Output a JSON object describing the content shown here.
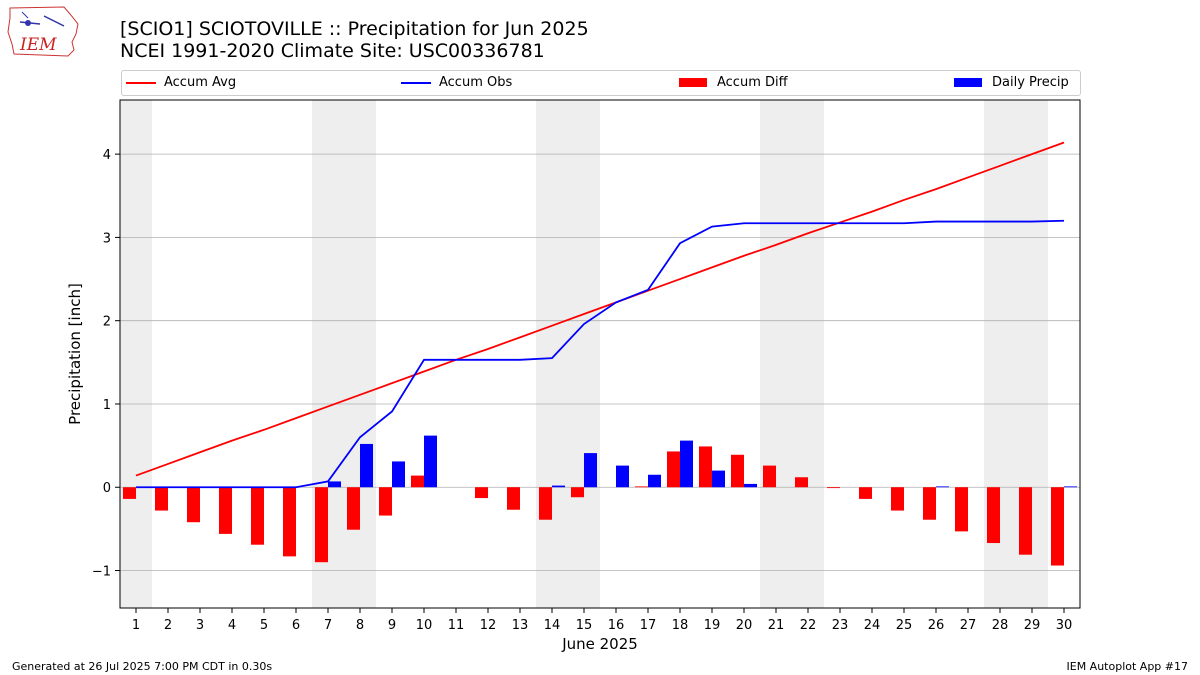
{
  "header": {
    "title_line1": "[SCIO1] SCIOTOVILLE :: Precipitation for Jun 2025",
    "title_line2": "NCEI 1991-2020 Climate Site: USC00336781"
  },
  "logo": {
    "text": "IEM"
  },
  "footer": {
    "left": "Generated at 26 Jul 2025 7:00 PM CDT in 0.30s",
    "right": "IEM Autoplot App #17"
  },
  "colors": {
    "accum_avg": "#ff0000",
    "accum_obs": "#0000ff",
    "accum_diff": "#ff0000",
    "daily_precip": "#0000ff",
    "weekend_shade": "#eeeeee",
    "grid": "#b0b0b0"
  },
  "chart_data": {
    "type": "bar",
    "xlabel": "June 2025",
    "ylabel": "Precipitation [inch]",
    "ylim": [
      -1.45,
      4.65
    ],
    "yticks": [
      -1,
      0,
      1,
      2,
      3,
      4
    ],
    "ytick_labels": [
      "−1",
      "0",
      "1",
      "2",
      "3",
      "4"
    ],
    "grid": "horizontal",
    "legend": "top",
    "categories": [
      "1",
      "2",
      "3",
      "4",
      "5",
      "6",
      "7",
      "8",
      "9",
      "10",
      "11",
      "12",
      "13",
      "14",
      "15",
      "16",
      "17",
      "18",
      "19",
      "20",
      "21",
      "22",
      "23",
      "24",
      "25",
      "26",
      "27",
      "28",
      "29",
      "30"
    ],
    "shaded_day_ranges": [
      [
        1,
        1
      ],
      [
        7,
        8
      ],
      [
        14,
        15
      ],
      [
        21,
        22
      ],
      [
        28,
        29
      ]
    ],
    "series": [
      {
        "name": "Accum Avg",
        "kind": "line",
        "values": [
          0.14,
          0.28,
          0.42,
          0.56,
          0.69,
          0.83,
          0.97,
          1.11,
          1.25,
          1.39,
          1.53,
          1.66,
          1.8,
          1.94,
          2.08,
          2.22,
          2.36,
          2.5,
          2.64,
          2.78,
          2.91,
          3.05,
          3.18,
          3.31,
          3.45,
          3.58,
          3.72,
          3.86,
          4.0,
          4.14
        ]
      },
      {
        "name": "Accum Obs",
        "kind": "line",
        "values": [
          0.0,
          0.0,
          0.0,
          0.0,
          0.0,
          0.0,
          0.07,
          0.6,
          0.91,
          1.53,
          1.53,
          1.53,
          1.53,
          1.55,
          1.96,
          2.22,
          2.37,
          2.93,
          3.13,
          3.17,
          3.17,
          3.17,
          3.17,
          3.17,
          3.17,
          3.19,
          3.19,
          3.19,
          3.19,
          3.2
        ]
      },
      {
        "name": "Accum Diff",
        "kind": "bar",
        "values": [
          -0.14,
          -0.28,
          -0.42,
          -0.56,
          -0.69,
          -0.83,
          -0.9,
          -0.51,
          -0.34,
          0.14,
          0.0,
          -0.13,
          -0.27,
          -0.39,
          -0.12,
          0.0,
          0.01,
          0.43,
          0.49,
          0.39,
          0.26,
          0.12,
          -0.01,
          -0.14,
          -0.28,
          -0.39,
          -0.53,
          -0.67,
          -0.81,
          -0.94
        ]
      },
      {
        "name": "Daily Precip",
        "kind": "bar",
        "values": [
          0.0,
          0.0,
          0.0,
          0.0,
          0.0,
          0.0,
          0.07,
          0.52,
          0.31,
          0.62,
          0.0,
          0.0,
          0.0,
          0.02,
          0.41,
          0.26,
          0.15,
          0.56,
          0.2,
          0.04,
          0.0,
          0.0,
          0.0,
          0.0,
          0.0,
          0.01,
          0.0,
          0.0,
          0.0,
          0.01
        ]
      }
    ]
  }
}
